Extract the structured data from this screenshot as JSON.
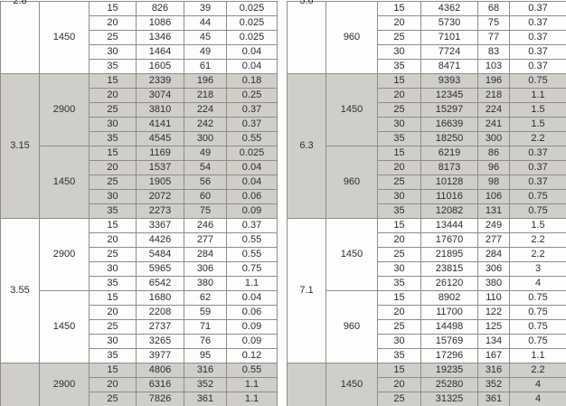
{
  "colors": {
    "band_gray": "#d0cec9",
    "row_white": "#fdfdfd",
    "grid_line": "#8f8d86",
    "text": "#2d2d2d"
  },
  "tables": [
    {
      "name": "left",
      "groups": [
        {
          "size": "2.8",
          "size_cut_top": true,
          "shaded": false,
          "blocks": [
            {
              "speed": "1450",
              "rows": [
                [
                  "15",
                  "826",
                  "39",
                  "0.025"
                ],
                [
                  "20",
                  "1086",
                  "44",
                  "0.025"
                ],
                [
                  "25",
                  "1346",
                  "45",
                  "0.025"
                ],
                [
                  "30",
                  "1464",
                  "49",
                  "0.04"
                ],
                [
                  "35",
                  "1605",
                  "61",
                  "0.04"
                ]
              ]
            }
          ]
        },
        {
          "size": "3.15",
          "size_cut_top": false,
          "shaded": true,
          "blocks": [
            {
              "speed": "2900",
              "rows": [
                [
                  "15",
                  "2339",
                  "196",
                  "0.18"
                ],
                [
                  "20",
                  "3074",
                  "218",
                  "0.25"
                ],
                [
                  "25",
                  "3810",
                  "224",
                  "0.37"
                ],
                [
                  "30",
                  "4141",
                  "242",
                  "0.37"
                ],
                [
                  "35",
                  "4545",
                  "300",
                  "0.55"
                ]
              ]
            },
            {
              "speed": "1450",
              "rows": [
                [
                  "15",
                  "1169",
                  "49",
                  "0.025"
                ],
                [
                  "20",
                  "1537",
                  "54",
                  "0.04"
                ],
                [
                  "25",
                  "1905",
                  "56",
                  "0.04"
                ],
                [
                  "30",
                  "2072",
                  "60",
                  "0.06"
                ],
                [
                  "35",
                  "2273",
                  "75",
                  "0.09"
                ]
              ]
            }
          ]
        },
        {
          "size": "3.55",
          "size_cut_top": false,
          "shaded": false,
          "blocks": [
            {
              "speed": "2900",
              "rows": [
                [
                  "15",
                  "3367",
                  "246",
                  "0.37"
                ],
                [
                  "20",
                  "4426",
                  "277",
                  "0.55"
                ],
                [
                  "25",
                  "5484",
                  "284",
                  "0.55"
                ],
                [
                  "30",
                  "5965",
                  "306",
                  "0.75"
                ],
                [
                  "35",
                  "6542",
                  "380",
                  "1.1"
                ]
              ]
            },
            {
              "speed": "1450",
              "rows": [
                [
                  "15",
                  "1680",
                  "62",
                  "0.04"
                ],
                [
                  "20",
                  "2208",
                  "59",
                  "0.06"
                ],
                [
                  "25",
                  "2737",
                  "71",
                  "0.09"
                ],
                [
                  "30",
                  "3265",
                  "76",
                  "0.09"
                ],
                [
                  "35",
                  "3977",
                  "95",
                  "0.12"
                ]
              ]
            }
          ]
        },
        {
          "size": "",
          "size_cut_top": false,
          "shaded": true,
          "blocks": [
            {
              "speed": "2900",
              "speed_valign": "bottom",
              "rows": [
                [
                  "15",
                  "4806",
                  "316",
                  "0.55"
                ],
                [
                  "20",
                  "6316",
                  "352",
                  "1.1"
                ],
                [
                  "25",
                  "7826",
                  "361",
                  "1.1"
                ]
              ]
            }
          ]
        }
      ]
    },
    {
      "name": "right",
      "groups": [
        {
          "size": "5.6",
          "size_cut_top": true,
          "shaded": false,
          "blocks": [
            {
              "speed": "960",
              "rows": [
                [
                  "15",
                  "4362",
                  "68",
                  "0.37"
                ],
                [
                  "20",
                  "5730",
                  "75",
                  "0.37"
                ],
                [
                  "25",
                  "7101",
                  "77",
                  "0.37"
                ],
                [
                  "30",
                  "7724",
                  "83",
                  "0.37"
                ],
                [
                  "35",
                  "8471",
                  "103",
                  "0.37"
                ]
              ]
            }
          ]
        },
        {
          "size": "6.3",
          "size_cut_top": false,
          "shaded": true,
          "blocks": [
            {
              "speed": "1450",
              "rows": [
                [
                  "15",
                  "9393",
                  "196",
                  "0.75"
                ],
                [
                  "20",
                  "12345",
                  "218",
                  "1.1"
                ],
                [
                  "25",
                  "15297",
                  "224",
                  "1.5"
                ],
                [
                  "30",
                  "16639",
                  "241",
                  "1.5"
                ],
                [
                  "35",
                  "18250",
                  "300",
                  "2.2"
                ]
              ]
            },
            {
              "speed": "960",
              "rows": [
                [
                  "15",
                  "6219",
                  "86",
                  "0.37"
                ],
                [
                  "20",
                  "8173",
                  "96",
                  "0.37"
                ],
                [
                  "25",
                  "10128",
                  "98",
                  "0.37"
                ],
                [
                  "30",
                  "11016",
                  "106",
                  "0.75"
                ],
                [
                  "35",
                  "12082",
                  "131",
                  "0.75"
                ]
              ]
            }
          ]
        },
        {
          "size": "7.1",
          "size_cut_top": false,
          "shaded": false,
          "blocks": [
            {
              "speed": "1450",
              "rows": [
                [
                  "15",
                  "13444",
                  "249",
                  "1.5"
                ],
                [
                  "20",
                  "17670",
                  "277",
                  "2.2"
                ],
                [
                  "25",
                  "21895",
                  "284",
                  "2.2"
                ],
                [
                  "30",
                  "23815",
                  "306",
                  "3"
                ],
                [
                  "35",
                  "26120",
                  "380",
                  "4"
                ]
              ]
            },
            {
              "speed": "960",
              "rows": [
                [
                  "15",
                  "8902",
                  "110",
                  "0.75"
                ],
                [
                  "20",
                  "11700",
                  "122",
                  "0.75"
                ],
                [
                  "25",
                  "14498",
                  "125",
                  "0.75"
                ],
                [
                  "30",
                  "15769",
                  "134",
                  "0.75"
                ],
                [
                  "35",
                  "17296",
                  "167",
                  "1.1"
                ]
              ]
            }
          ]
        },
        {
          "size": "",
          "size_cut_top": false,
          "shaded": true,
          "blocks": [
            {
              "speed": "1450",
              "speed_valign": "bottom",
              "rows": [
                [
                  "15",
                  "19235",
                  "316",
                  "2.2"
                ],
                [
                  "20",
                  "25280",
                  "352",
                  "4"
                ],
                [
                  "25",
                  "31325",
                  "361",
                  "4"
                ]
              ]
            }
          ]
        }
      ]
    }
  ]
}
